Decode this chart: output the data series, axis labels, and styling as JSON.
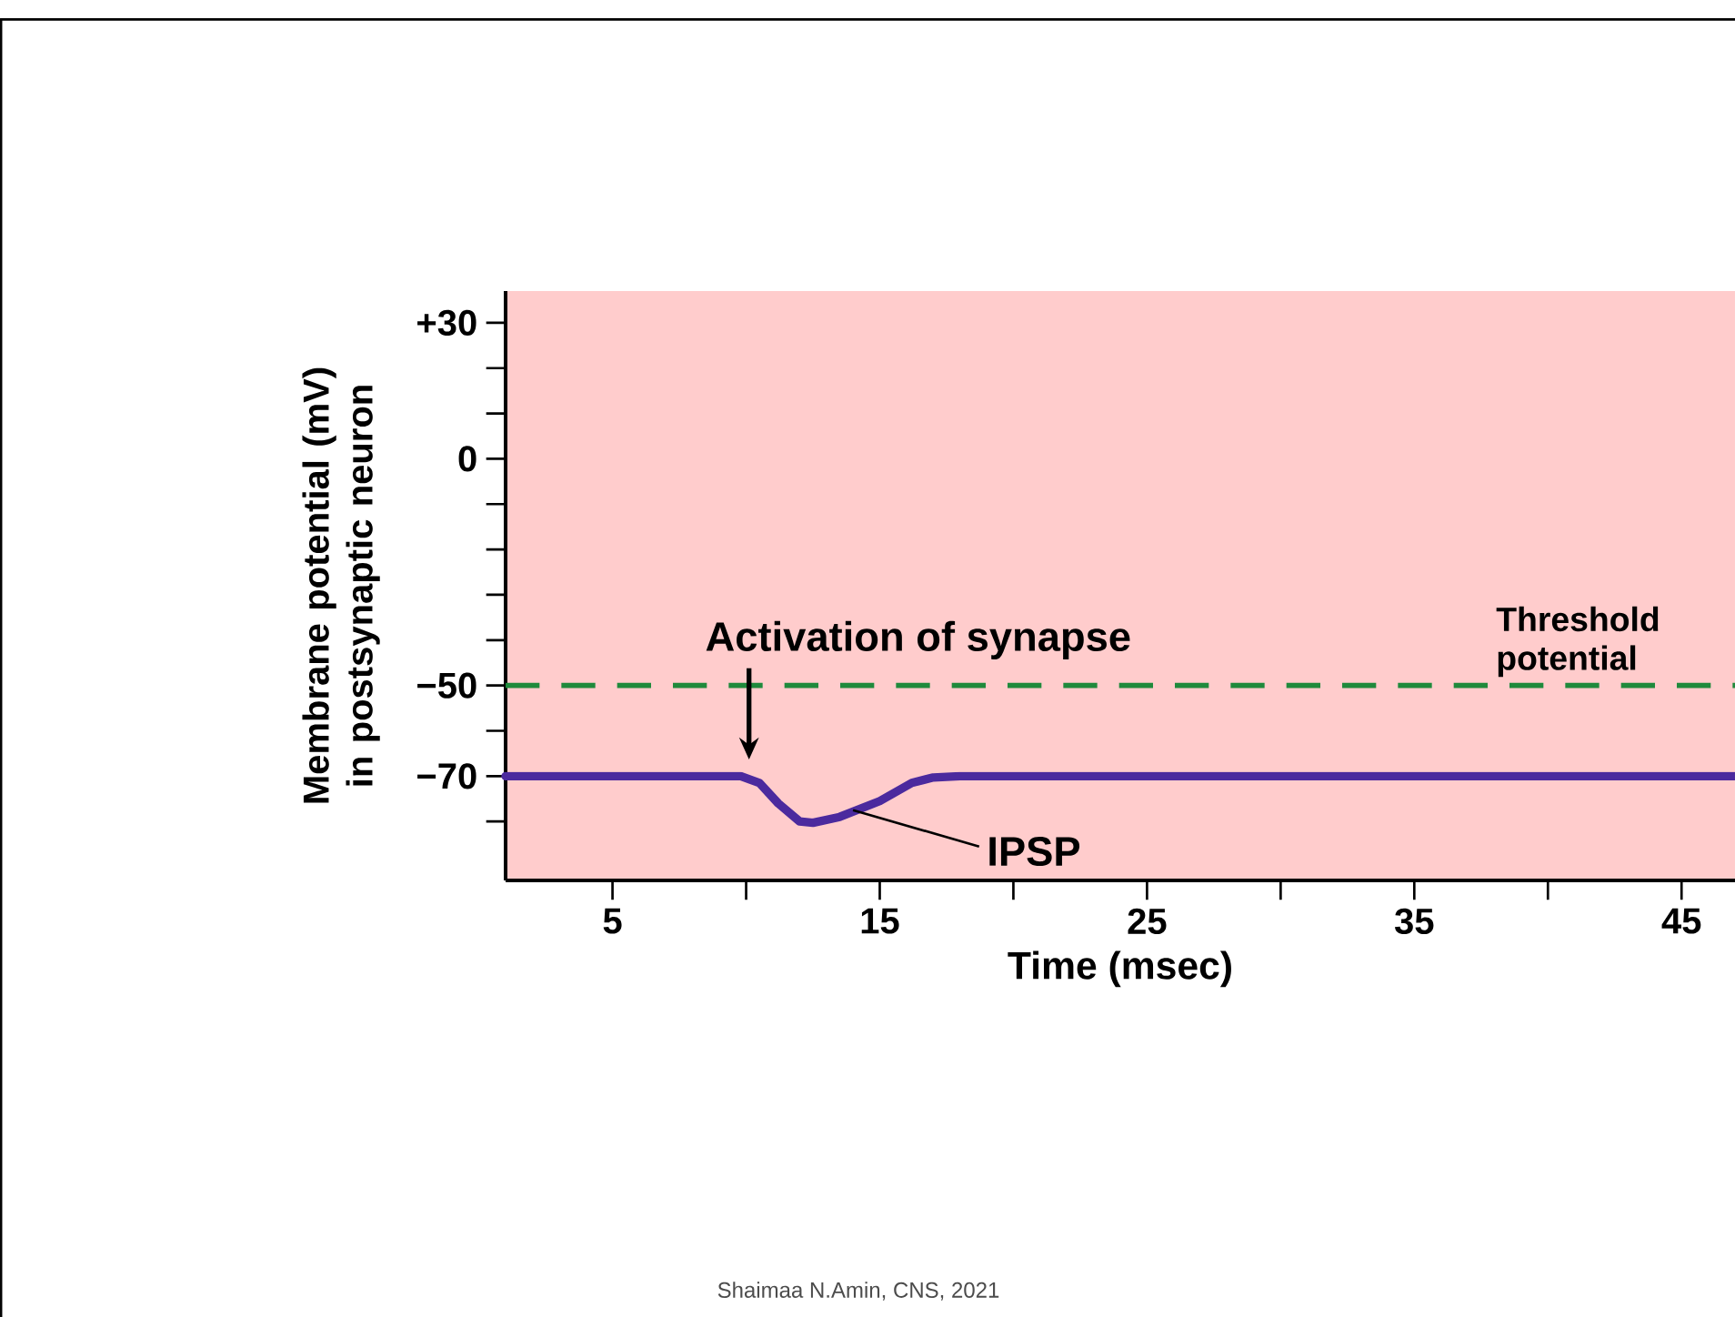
{
  "chart_data": {
    "type": "line",
    "xlabel": "Time (msec)",
    "ylabel": "Membrane potential (mV) in postsynaptic neuron",
    "x": [
      1,
      9.8,
      10.5,
      11.2,
      12,
      12.5,
      13.5,
      15,
      16.2,
      17,
      18,
      47
    ],
    "series": [
      {
        "color": "#4b2a9e",
        "values": [
          -70,
          -70,
          -71.5,
          -76,
          -80,
          -80.3,
          -79,
          -75.5,
          -71.5,
          -70.3,
          -70,
          -70
        ]
      }
    ],
    "xlim": [
      1,
      47
    ],
    "ylim": [
      -93,
      37
    ],
    "xticks": [
      5,
      {
        "value": 10,
        "label": null
      },
      15,
      {
        "value": 20,
        "label": null
      },
      25,
      {
        "value": 30,
        "label": null
      },
      35,
      {
        "value": 40,
        "label": null
      },
      45
    ],
    "yticks": [
      {
        "value": 30,
        "label": "+30"
      },
      {
        "value": 20,
        "label": null
      },
      {
        "value": 10,
        "label": null
      },
      0,
      {
        "value": -10,
        "label": null
      },
      {
        "value": -20,
        "label": null
      },
      {
        "value": -30,
        "label": null
      },
      {
        "value": -40,
        "label": null
      },
      {
        "value": -50,
        "label": "−50"
      },
      {
        "value": -60,
        "label": null
      },
      {
        "value": -70,
        "label": "−70"
      },
      {
        "value": -80,
        "label": null
      }
    ],
    "ref_lines": [
      {
        "axis": "y",
        "value": -50,
        "label": "Threshold potential",
        "color": "#1f8a3c",
        "line_style": "dashed"
      }
    ],
    "annotations": [
      "Activation of synapse",
      {
        "text": "IPSP",
        "x": 14,
        "y": -77.5
      },
      "Shaimaa N.Amin, CNS, 2021"
    ],
    "grid": false,
    "marker": "none",
    "line_style": "solid"
  }
}
